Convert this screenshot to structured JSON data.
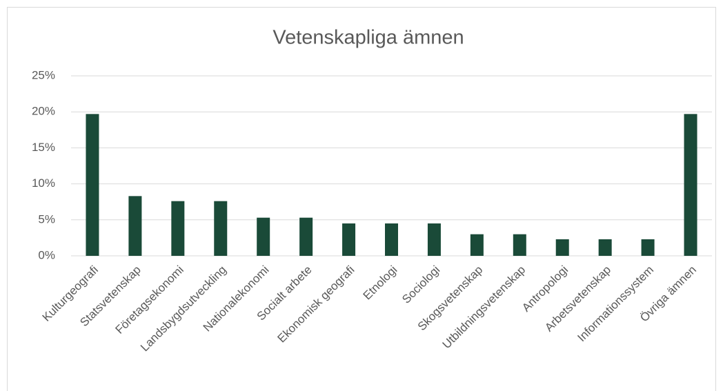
{
  "chart_data": {
    "type": "bar",
    "title": "Vetenskapliga ämnen",
    "categories": [
      "Kulturgeografi",
      "Statsvetenskap",
      "Företagsekonomi",
      "Landsbygdsutveckling",
      "Nationalekonomi",
      "Socialt arbete",
      "Ekonomisk geografi",
      "Etnologi",
      "Sociologi",
      "Skogsvetenskap",
      "Utbildningsvetenskap",
      "Antropologi",
      "Arbetsvetenskap",
      "Informationssystem",
      "Övriga ämnen"
    ],
    "values": [
      19.7,
      8.3,
      7.6,
      7.6,
      5.3,
      5.3,
      4.5,
      4.5,
      4.5,
      3.0,
      3.0,
      2.3,
      2.3,
      2.3,
      19.7
    ],
    "color": "#1a4a38",
    "ylim": [
      0,
      25
    ],
    "yticks": [
      {
        "value": 0,
        "label": "0%"
      },
      {
        "value": 5,
        "label": "5%"
      },
      {
        "value": 10,
        "label": "10%"
      },
      {
        "value": 15,
        "label": "15%"
      },
      {
        "value": 20,
        "label": "20%"
      },
      {
        "value": 25,
        "label": "25%"
      }
    ],
    "grid": true
  }
}
